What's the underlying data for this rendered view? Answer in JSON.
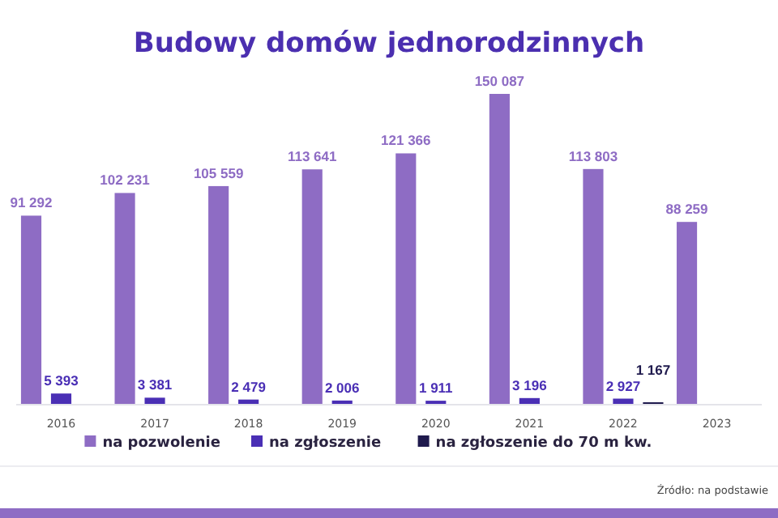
{
  "chart_data": {
    "type": "bar",
    "title": "Budowy domów jednorodzinnych",
    "categories": [
      "2016",
      "2017",
      "2018",
      "2019",
      "2020",
      "2021",
      "2022",
      "2023"
    ],
    "series": [
      {
        "name": "na pozwolenie",
        "color": "#8e6cc4",
        "values": [
          91292,
          102231,
          105559,
          113641,
          121366,
          150087,
          113803,
          88259
        ],
        "value_labels": [
          "91 292",
          "102 231",
          "105 559",
          "113 641",
          "121 366",
          "150 087",
          "113 803",
          "88 259"
        ]
      },
      {
        "name": "na zgłoszenie",
        "color": "#4a2fb5",
        "values": [
          5393,
          3381,
          2479,
          2006,
          1911,
          3196,
          2927,
          null
        ],
        "value_labels": [
          "5 393",
          "3 381",
          "2 479",
          "2 006",
          "1 911",
          "3 196",
          "2 927",
          null
        ]
      },
      {
        "name": "na zgłoszenie do 70 m kw.",
        "color": "#1f1a4d",
        "values": [
          null,
          null,
          null,
          null,
          null,
          null,
          1167,
          null
        ],
        "value_labels": [
          null,
          null,
          null,
          null,
          null,
          null,
          "1 167",
          null
        ]
      }
    ],
    "legend": "bottom",
    "annotations": [
      "Źródło: na podstawie"
    ]
  }
}
